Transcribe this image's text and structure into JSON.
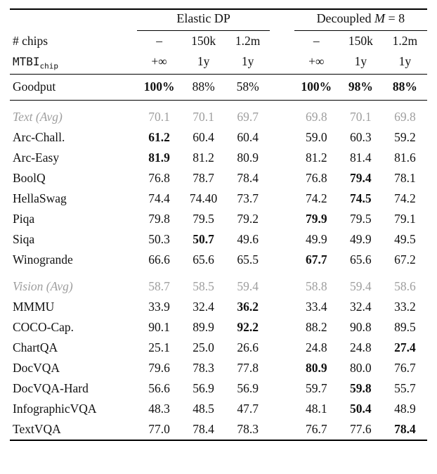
{
  "page": {
    "bg": "#ffffff",
    "text_color": "#111111",
    "muted_color": "#9e9e9e",
    "rule_color": "#000000"
  },
  "table": {
    "group1_label": "Elastic DP",
    "group2_prefix": "Decoupled ",
    "group2_var": "M",
    "group2_suffix": " = 8",
    "header_rows": [
      {
        "label": "# chips",
        "values": [
          "–",
          "150k",
          "1.2m",
          "–",
          "150k",
          "1.2m"
        ]
      },
      {
        "label": "MTBI",
        "label_sub": "chip",
        "values": [
          "+∞",
          "1y",
          "1y",
          "+∞",
          "1y",
          "1y"
        ]
      }
    ],
    "body": [
      {
        "name": "goodput-row",
        "type": "goodput",
        "label": "Goodput",
        "values": [
          "100%",
          "88%",
          "58%",
          "100%",
          "98%",
          "88%"
        ],
        "bold": [
          0,
          3,
          4,
          5
        ]
      },
      {
        "name": "text-avg-row",
        "type": "avg",
        "label": "Text (Avg)",
        "values": [
          "70.1",
          "70.1",
          "69.7",
          "69.8",
          "70.1",
          "69.8"
        ],
        "bold": []
      },
      {
        "name": "row-arc-chall",
        "type": "data",
        "label": "Arc-Chall.",
        "values": [
          "61.2",
          "60.4",
          "60.4",
          "59.0",
          "60.3",
          "59.2"
        ],
        "bold": [
          0
        ]
      },
      {
        "name": "row-arc-easy",
        "type": "data",
        "label": "Arc-Easy",
        "values": [
          "81.9",
          "81.2",
          "80.9",
          "81.2",
          "81.4",
          "81.6"
        ],
        "bold": [
          0
        ]
      },
      {
        "name": "row-boolq",
        "type": "data",
        "label": "BoolQ",
        "values": [
          "76.8",
          "78.7",
          "78.4",
          "76.8",
          "79.4",
          "78.1"
        ],
        "bold": [
          4
        ]
      },
      {
        "name": "row-hellaswag",
        "type": "data",
        "label": "HellaSwag",
        "values": [
          "74.4",
          "74.40",
          "73.7",
          "74.2",
          "74.5",
          "74.2"
        ],
        "bold": [
          4
        ]
      },
      {
        "name": "row-piqa",
        "type": "data",
        "label": "Piqa",
        "values": [
          "79.8",
          "79.5",
          "79.2",
          "79.9",
          "79.5",
          "79.1"
        ],
        "bold": [
          3
        ]
      },
      {
        "name": "row-siqa",
        "type": "data",
        "label": "Siqa",
        "values": [
          "50.3",
          "50.7",
          "49.6",
          "49.9",
          "49.9",
          "49.5"
        ],
        "bold": [
          1
        ]
      },
      {
        "name": "row-winogrande",
        "type": "data",
        "label": "Winogrande",
        "values": [
          "66.6",
          "65.6",
          "65.5",
          "67.7",
          "65.6",
          "67.2"
        ],
        "bold": [
          3
        ]
      },
      {
        "name": "vision-avg-row",
        "type": "avg",
        "label": "Vision (Avg)",
        "values": [
          "58.7",
          "58.5",
          "59.4",
          "58.8",
          "59.4",
          "58.6"
        ],
        "bold": []
      },
      {
        "name": "row-mmmu",
        "type": "data",
        "label": "MMMU",
        "values": [
          "33.9",
          "32.4",
          "36.2",
          "33.4",
          "32.4",
          "33.2"
        ],
        "bold": [
          2
        ]
      },
      {
        "name": "row-coco-cap",
        "type": "data",
        "label": "COCO-Cap.",
        "values": [
          "90.1",
          "89.9",
          "92.2",
          "88.2",
          "90.8",
          "89.5"
        ],
        "bold": [
          2
        ]
      },
      {
        "name": "row-chartqa",
        "type": "data",
        "label": "ChartQA",
        "values": [
          "25.1",
          "25.0",
          "26.6",
          "24.8",
          "24.8",
          "27.4"
        ],
        "bold": [
          5
        ]
      },
      {
        "name": "row-docvqa",
        "type": "data",
        "label": "DocVQA",
        "values": [
          "79.6",
          "78.3",
          "77.8",
          "80.9",
          "80.0",
          "76.7"
        ],
        "bold": [
          3
        ]
      },
      {
        "name": "row-docvqa-hard",
        "type": "data",
        "label": "DocVQA-Hard",
        "values": [
          "56.6",
          "56.9",
          "56.9",
          "59.7",
          "59.8",
          "55.7"
        ],
        "bold": [
          4
        ]
      },
      {
        "name": "row-infographicvqa",
        "type": "data",
        "label": "InfographicVQA",
        "values": [
          "48.3",
          "48.5",
          "47.7",
          "48.1",
          "50.4",
          "48.9"
        ],
        "bold": [
          4
        ]
      },
      {
        "name": "row-textvqa",
        "type": "data",
        "label": "TextVQA",
        "values": [
          "77.0",
          "78.4",
          "78.3",
          "76.7",
          "77.6",
          "78.4"
        ],
        "bold": [
          5
        ]
      }
    ]
  }
}
